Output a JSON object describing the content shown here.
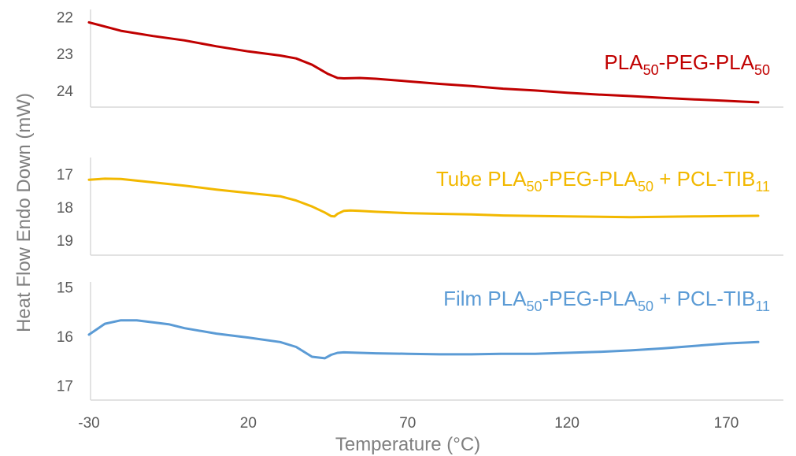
{
  "chart_data": {
    "type": "line",
    "xlabel": "Temperature (°C)",
    "ylabel": "Heat Flow Endo Down (mW)",
    "xlim": [
      -30,
      182
    ],
    "x_ticks": [
      "-30",
      "20",
      "70",
      "120",
      "170"
    ],
    "panels": [
      {
        "label": {
          "main": "PLA",
          "parts": [
            [
              "PLA",
              ""
            ],
            [
              "50",
              "sub"
            ],
            [
              "-PEG-PLA",
              ""
            ],
            [
              "50",
              "sub"
            ]
          ]
        },
        "color": "#c00000",
        "ylim": [
          21.8,
          24.45
        ],
        "y_ticks": [
          "22",
          "23",
          "24"
        ],
        "y_tick_values": [
          22,
          23,
          24
        ],
        "series": {
          "x": [
            -30,
            -20,
            -10,
            0,
            10,
            20,
            30,
            35,
            40,
            45,
            48,
            50,
            55,
            60,
            70,
            80,
            90,
            100,
            110,
            120,
            130,
            140,
            150,
            160,
            170,
            175,
            180
          ],
          "y": [
            22.15,
            22.38,
            22.52,
            22.64,
            22.8,
            22.94,
            23.05,
            23.13,
            23.3,
            23.55,
            23.66,
            23.67,
            23.66,
            23.68,
            23.75,
            23.82,
            23.88,
            23.95,
            24.0,
            24.06,
            24.11,
            24.15,
            24.2,
            24.24,
            24.28,
            24.3,
            24.32
          ]
        }
      },
      {
        "label": {
          "main": "Tube",
          "parts": [
            [
              "Tube PLA",
              ""
            ],
            [
              "50",
              "sub"
            ],
            [
              "-PEG-PLA",
              ""
            ],
            [
              "50",
              "sub"
            ],
            [
              " + PCL-TIB",
              ""
            ],
            [
              "11",
              "sub"
            ]
          ]
        },
        "color": "#f2b800",
        "ylim": [
          16.5,
          19.45
        ],
        "y_ticks": [
          "17",
          "18",
          "19"
        ],
        "y_tick_values": [
          17,
          18,
          19
        ],
        "series": {
          "x": [
            -30,
            -25,
            -20,
            -10,
            0,
            10,
            20,
            30,
            35,
            40,
            44,
            46,
            47,
            48,
            50,
            52,
            55,
            60,
            70,
            80,
            90,
            100,
            120,
            140,
            160,
            170,
            180
          ],
          "y": [
            17.17,
            17.14,
            17.15,
            17.25,
            17.35,
            17.47,
            17.57,
            17.67,
            17.8,
            17.98,
            18.16,
            18.27,
            18.28,
            18.2,
            18.11,
            18.1,
            18.11,
            18.14,
            18.18,
            18.2,
            18.22,
            18.25,
            18.28,
            18.3,
            18.28,
            18.27,
            18.26
          ]
        }
      },
      {
        "label": {
          "main": "Film",
          "parts": [
            [
              "Film PLA",
              ""
            ],
            [
              "50",
              "sub"
            ],
            [
              "-PEG-PLA",
              ""
            ],
            [
              "50",
              "sub"
            ],
            [
              " + PCL-TIB",
              ""
            ],
            [
              "11",
              "sub"
            ]
          ]
        },
        "color": "#5b9bd5",
        "ylim": [
          14.9,
          17.3
        ],
        "y_ticks": [
          "15",
          "16",
          "17"
        ],
        "y_tick_values": [
          15,
          16,
          17
        ],
        "series": {
          "x": [
            -30,
            -25,
            -20,
            -15,
            -10,
            -5,
            0,
            10,
            20,
            30,
            35,
            40,
            44,
            46,
            48,
            50,
            55,
            60,
            70,
            80,
            90,
            100,
            110,
            120,
            130,
            140,
            150,
            160,
            170,
            180
          ],
          "y": [
            15.97,
            15.75,
            15.68,
            15.68,
            15.72,
            15.76,
            15.84,
            15.95,
            16.03,
            16.12,
            16.22,
            16.42,
            16.45,
            16.38,
            16.34,
            16.33,
            16.34,
            16.35,
            16.36,
            16.37,
            16.37,
            16.36,
            16.36,
            16.34,
            16.32,
            16.29,
            16.25,
            16.2,
            16.15,
            16.12
          ]
        }
      }
    ]
  }
}
